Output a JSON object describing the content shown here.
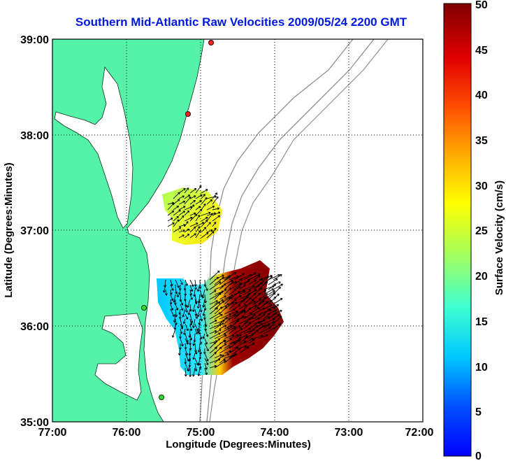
{
  "title": "Southern Mid-Atlantic Raw Velocities 2009/05/24 2200 GMT",
  "xlabel": "Longitude (Degrees:Minutes)",
  "ylabel": "Latitude (Degrees:Minutes)",
  "x_ticks": [
    "77:00",
    "76:00",
    "75:00",
    "74:00",
    "73:00",
    "72:00"
  ],
  "y_ticks": [
    "39:00",
    "38:00",
    "37:00",
    "36:00",
    "35:00"
  ],
  "colorbar": {
    "label": "Surface Velocity (cm/s)",
    "ticks": [
      "50",
      "45",
      "40",
      "35",
      "30",
      "25",
      "20",
      "15",
      "10",
      "5",
      "0"
    ],
    "range": [
      0,
      50
    ],
    "colormap": "jet"
  },
  "colors": {
    "title": "#0018e0",
    "land": "#55f3a8",
    "station_red": "#ff2020",
    "station_green": "#30e030"
  },
  "chart_data": {
    "type": "heatmap",
    "description_type": "map",
    "xlim": [
      "77:00 W",
      "72:00 W"
    ],
    "ylim": [
      "35:00 N",
      "39:00 N"
    ],
    "grid": true,
    "value_units": "cm/s"
  }
}
